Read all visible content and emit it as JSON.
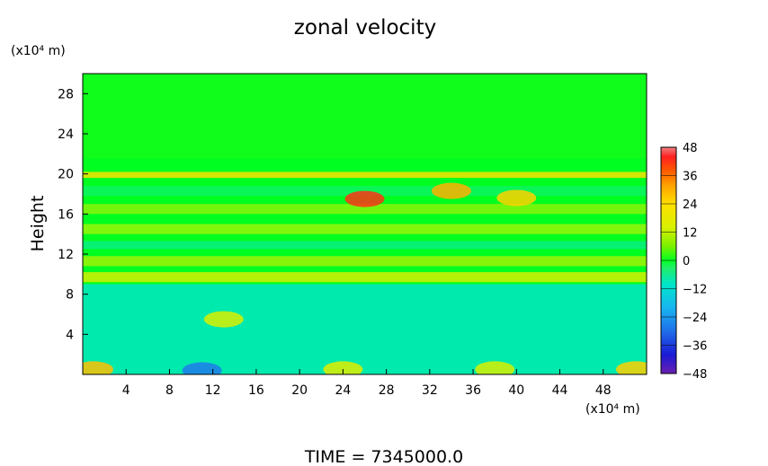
{
  "chart_data": {
    "type": "heatmap",
    "title": "zonal velocity",
    "xlabel": "",
    "ylabel": "Height",
    "x_unit_label": "(x10⁴ m)",
    "y_unit_label": "(x10⁴ m)",
    "xlim": [
      0,
      52
    ],
    "ylim": [
      0,
      30
    ],
    "x_ticks": [
      4,
      8,
      12,
      16,
      20,
      24,
      28,
      32,
      36,
      40,
      44,
      48
    ],
    "y_ticks": [
      4,
      8,
      12,
      16,
      20,
      24,
      28
    ],
    "colorbar": {
      "ticks": [
        48,
        36,
        24,
        12,
        0,
        -12,
        -24,
        -36,
        -48
      ],
      "tick_labels": [
        "48",
        "36",
        "24",
        "12",
        "0",
        "−12",
        "−24",
        "−36",
        "−48"
      ],
      "range": [
        -48,
        48
      ],
      "stops": [
        {
          "value": -48,
          "color": "#6a1fb0"
        },
        {
          "value": -40,
          "color": "#1a1ad6"
        },
        {
          "value": -30,
          "color": "#1f6fe8"
        },
        {
          "value": -20,
          "color": "#18b6f0"
        },
        {
          "value": -10,
          "color": "#00e6c8"
        },
        {
          "value": -3,
          "color": "#22ee66"
        },
        {
          "value": 0,
          "color": "#00ff20"
        },
        {
          "value": 6,
          "color": "#7cf000"
        },
        {
          "value": 14,
          "color": "#d8f000"
        },
        {
          "value": 24,
          "color": "#ffe000"
        },
        {
          "value": 32,
          "color": "#ffa000"
        },
        {
          "value": 38,
          "color": "#ff5a00"
        },
        {
          "value": 44,
          "color": "#ff2020"
        },
        {
          "value": 48,
          "color": "#f08080"
        }
      ]
    },
    "field_features": [
      {
        "x": 1,
        "y": 0.5,
        "value": 28
      },
      {
        "x": 51,
        "y": 0.5,
        "value": 26
      },
      {
        "x": 11,
        "y": 0.4,
        "value": -28
      },
      {
        "x": 24,
        "y": 0.5,
        "value": 16
      },
      {
        "x": 38,
        "y": 0.5,
        "value": 14
      },
      {
        "x": 13,
        "y": 5.5,
        "value": 14
      },
      {
        "x": 26,
        "y": 17.5,
        "value": 42
      },
      {
        "x": 34,
        "y": 18.3,
        "value": 30
      },
      {
        "x": 40,
        "y": 17.6,
        "value": 26
      }
    ]
  },
  "footer": {
    "time_label": "TIME = 7345000.0"
  },
  "colors": {
    "axis": "#000000",
    "background": "#ffffff"
  }
}
